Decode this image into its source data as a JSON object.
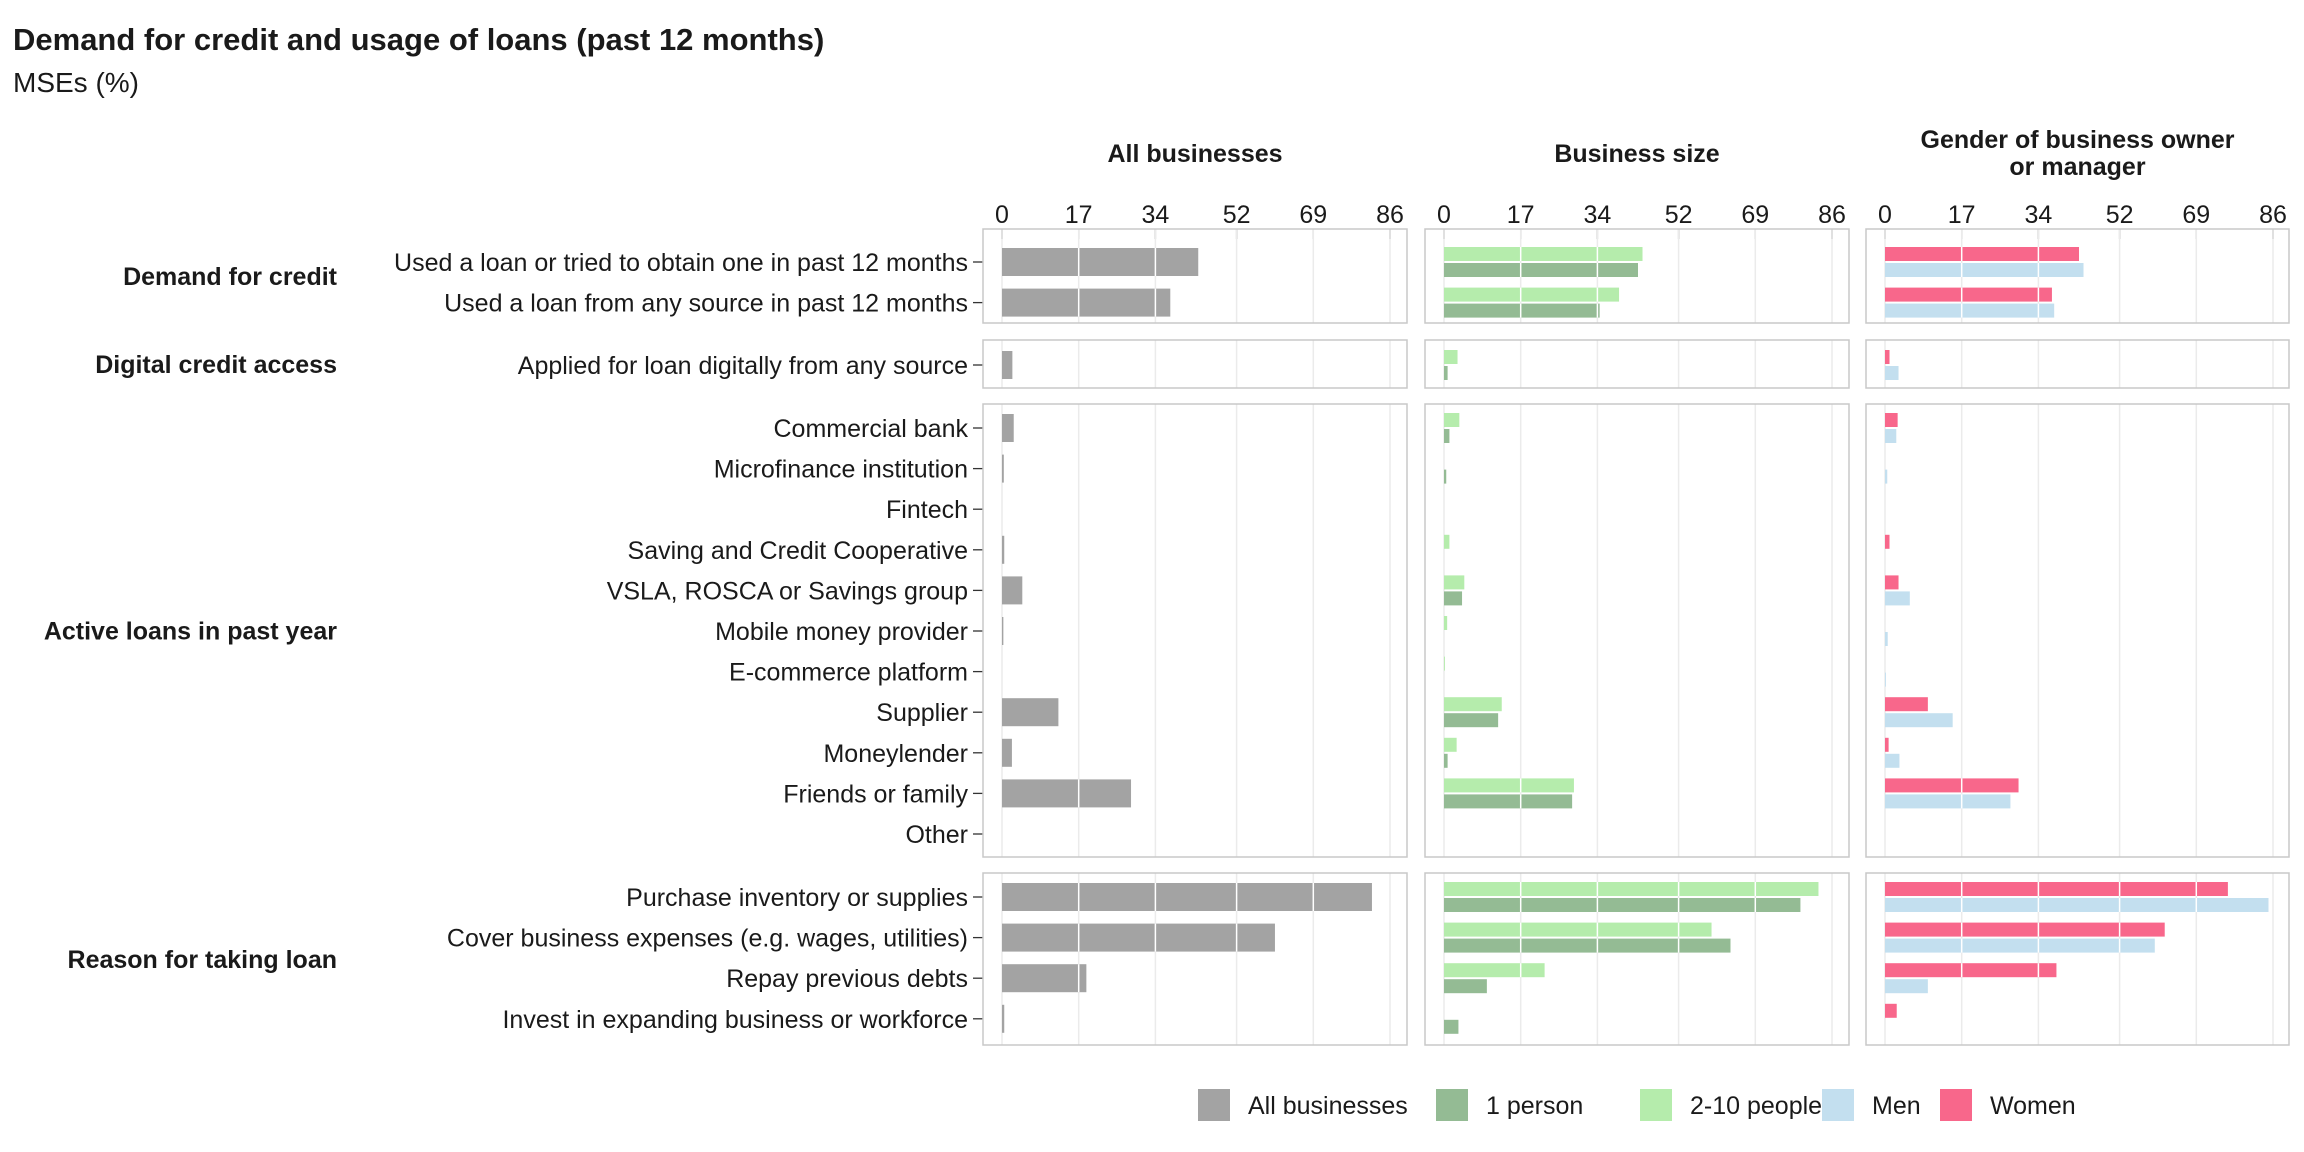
{
  "chart_data": {
    "type": "bar",
    "orientation": "horizontal",
    "title": "Demand for credit and usage of loans (past 12 months)",
    "subtitle": "MSEs (%)",
    "xlim": [
      0,
      86
    ],
    "x_ticks": [
      "0",
      "17",
      "34",
      "52",
      "69",
      "86"
    ],
    "tick_values": [
      0,
      17,
      34,
      52,
      69,
      86
    ],
    "grid": true,
    "legend_position": "bottom",
    "panels": [
      {
        "title": "All businesses",
        "series_keys": [
          "all"
        ]
      },
      {
        "title": "Business size",
        "series_keys": [
          "size_2_10",
          "size_1"
        ]
      },
      {
        "title": "Gender of business owner or manager",
        "title_lines": [
          "Gender of business owner",
          "or manager"
        ],
        "series_keys": [
          "women",
          "men"
        ]
      }
    ],
    "series": [
      {
        "key": "all",
        "name": "All businesses",
        "color": "#a3a3a3"
      },
      {
        "key": "size_1",
        "name": "1 person",
        "color": "#94bb94"
      },
      {
        "key": "size_2_10",
        "name": "2-10 people",
        "color": "#b5ecac"
      },
      {
        "key": "men",
        "name": "Men",
        "color": "#c3dfef"
      },
      {
        "key": "women",
        "name": "Women",
        "color": "#f8678b"
      }
    ],
    "legend_order": [
      "all",
      "size_1",
      "size_2_10",
      "men",
      "women"
    ],
    "groups": [
      {
        "name": "Demand for credit",
        "categories": [
          {
            "label": "Used a loan or tried to obtain one in past 12 months",
            "values": {
              "all": 43.5,
              "size_1": 43,
              "size_2_10": 44,
              "men": 44,
              "women": 43
            }
          },
          {
            "label": "Used a loan from any source in past 12 months",
            "values": {
              "all": 37.3,
              "size_1": 34.5,
              "size_2_10": 38.8,
              "men": 37.5,
              "women": 37
            }
          }
        ]
      },
      {
        "name": "Digital credit access",
        "categories": [
          {
            "label": "Applied for loan digitally from any source",
            "values": {
              "all": 2.3,
              "size_1": 0.8,
              "size_2_10": 3,
              "men": 3,
              "women": 1
            }
          }
        ]
      },
      {
        "name": "Active loans in past year",
        "categories": [
          {
            "label": "Commercial bank",
            "values": {
              "all": 2.6,
              "size_1": 1.2,
              "size_2_10": 3.4,
              "men": 2.5,
              "women": 2.8
            }
          },
          {
            "label": "Microfinance institution",
            "values": {
              "all": 0.4,
              "size_1": 0.5,
              "size_2_10": 0,
              "men": 0.5,
              "women": 0
            }
          },
          {
            "label": "Fintech",
            "values": {
              "all": 0,
              "size_1": 0,
              "size_2_10": 0,
              "men": 0,
              "women": 0
            }
          },
          {
            "label": "Saving and Credit Cooperative",
            "values": {
              "all": 0.5,
              "size_1": 0,
              "size_2_10": 1.2,
              "men": 0,
              "women": 1
            }
          },
          {
            "label": "VSLA, ROSCA or Savings group",
            "values": {
              "all": 4.5,
              "size_1": 4,
              "size_2_10": 4.5,
              "men": 5.5,
              "women": 3
            }
          },
          {
            "label": "Mobile money provider",
            "values": {
              "all": 0.3,
              "size_1": 0,
              "size_2_10": 0.7,
              "men": 0.6,
              "women": 0
            }
          },
          {
            "label": "E-commerce platform",
            "values": {
              "all": 0,
              "size_1": 0,
              "size_2_10": 0.2,
              "men": 0.2,
              "women": 0
            }
          },
          {
            "label": "Supplier",
            "values": {
              "all": 12.5,
              "size_1": 12,
              "size_2_10": 12.8,
              "men": 15,
              "women": 9.5
            }
          },
          {
            "label": "Moneylender",
            "values": {
              "all": 2.2,
              "size_1": 0.8,
              "size_2_10": 2.8,
              "men": 3.2,
              "women": 0.8
            }
          },
          {
            "label": "Friends or family",
            "values": {
              "all": 28.6,
              "size_1": 28.4,
              "size_2_10": 28.8,
              "men": 27.8,
              "women": 29.6
            }
          },
          {
            "label": "Other",
            "values": {
              "all": 0,
              "size_1": 0,
              "size_2_10": 0,
              "men": 0,
              "women": 0
            }
          }
        ]
      },
      {
        "name": "Reason for taking loan",
        "categories": [
          {
            "label": "Purchase inventory or supplies",
            "values": {
              "all": 82,
              "size_1": 79,
              "size_2_10": 83,
              "men": 85,
              "women": 76
            }
          },
          {
            "label": "Cover business expenses (e.g. wages, utilities)",
            "values": {
              "all": 60.5,
              "size_1": 63.5,
              "size_2_10": 59.3,
              "men": 59.8,
              "women": 62
            }
          },
          {
            "label": "Repay previous debts",
            "values": {
              "all": 18.7,
              "size_1": 9.5,
              "size_2_10": 22.3,
              "men": 9.5,
              "women": 38
            }
          },
          {
            "label": "Invest in expanding business or workforce",
            "values": {
              "all": 0.5,
              "size_1": 3.2,
              "size_2_10": 0,
              "men": 0,
              "women": 2.6
            }
          }
        ]
      }
    ]
  }
}
